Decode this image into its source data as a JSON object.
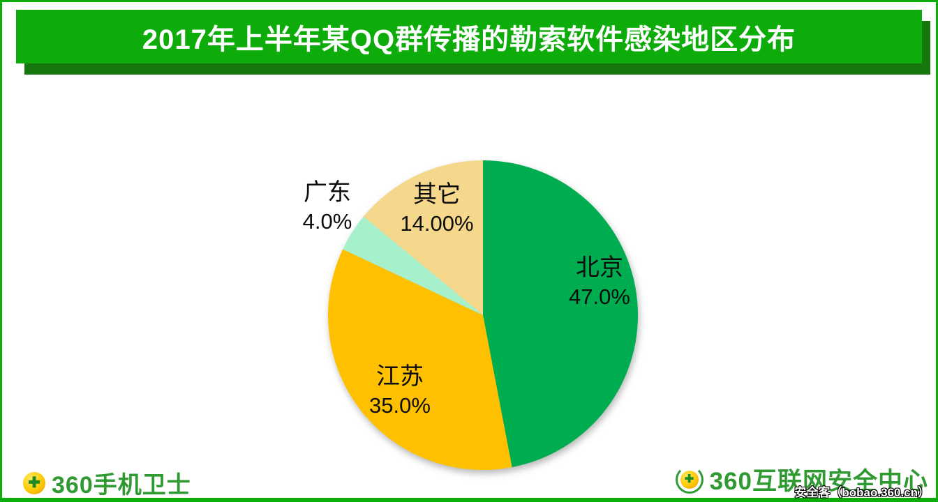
{
  "header": {
    "title": "2017年上半年某QQ群传播的勒索软件感染地区分布"
  },
  "chart_data": {
    "type": "pie",
    "title": "2017年上半年某QQ群传播的勒索软件感染地区分布",
    "categories": [
      "北京",
      "江苏",
      "广东",
      "其它"
    ],
    "values": [
      47.0,
      35.0,
      4.0,
      14.0
    ],
    "value_labels": [
      "47.0%",
      "35.0%",
      "4.0%",
      "14.00%"
    ],
    "colors": [
      "#00ac50",
      "#ffc000",
      "#a7f0cc",
      "#f6d88c"
    ],
    "start_angle_deg": 0,
    "direction": "clockwise",
    "legend_position": "none",
    "labels_position": "on-slices",
    "background": "#ffffff"
  },
  "footer": {
    "left_logo": {
      "text": "360手机卫士"
    },
    "right_logo": {
      "text": "360互联网安全中心"
    },
    "watermark": "安全客（bobao.360.cn）"
  },
  "icons": {
    "cross": "✚"
  },
  "colors": {
    "banner_green": "#0eac0b",
    "banner_shadow_green": "#17770f",
    "page_border_green": "#0cad0a",
    "logo_text_green": "#2f9932",
    "logo_ball_yellow": "#fec800"
  }
}
